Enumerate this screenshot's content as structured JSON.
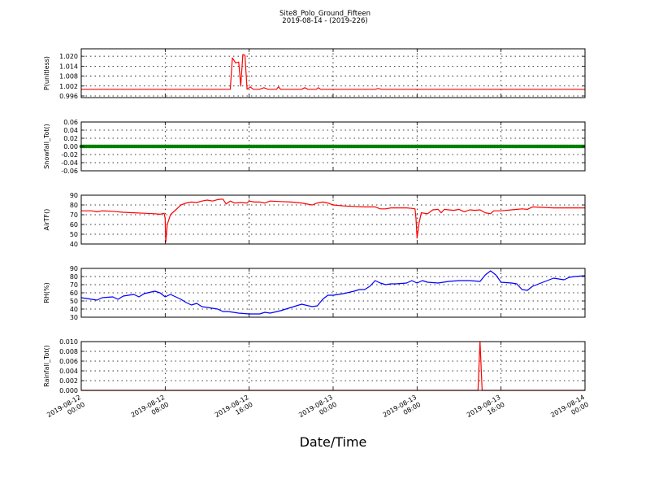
{
  "chart_data": {
    "type": "line",
    "title": "Site8_Polo_Ground_Fifteen",
    "subtitle": "2019-08-14 - (2019-226)",
    "xlabel": "Date/Time",
    "x_ticks": [
      [
        "2019-08-12",
        "00:00"
      ],
      [
        "2019-08-12",
        "08:00"
      ],
      [
        "2019-08-12",
        "16:00"
      ],
      [
        "2019-08-13",
        "00:00"
      ],
      [
        "2019-08-13",
        "08:00"
      ],
      [
        "2019-08-13",
        "16:00"
      ],
      [
        "2019-08-14",
        "00:00"
      ]
    ],
    "x_range_hours": [
      0,
      48
    ],
    "grid": true,
    "panels": [
      {
        "ylabel": "P(unitless)",
        "color": "#ff0000",
        "marker": "line",
        "ylim": [
          0.995,
          1.0245
        ],
        "yticks": [
          "0.996",
          "1.002",
          "1.008",
          "1.014",
          "1.020"
        ],
        "ytick_values": [
          0.996,
          1.002,
          1.008,
          1.014,
          1.02
        ],
        "points": [
          [
            0,
            1.0
          ],
          [
            14.2,
            1.0
          ],
          [
            14.4,
            1.019
          ],
          [
            14.7,
            1.016
          ],
          [
            15.0,
            1.0165
          ],
          [
            15.2,
            1.002
          ],
          [
            15.4,
            1.021
          ],
          [
            15.6,
            1.0205
          ],
          [
            15.8,
            1.0
          ],
          [
            16.1,
            1.0015
          ],
          [
            16.4,
            1.0
          ],
          [
            17.0,
            1.0
          ],
          [
            17.4,
            1.001
          ],
          [
            17.8,
            1.0
          ],
          [
            18.6,
            1.0
          ],
          [
            18.8,
            1.0015
          ],
          [
            19.0,
            1.0
          ],
          [
            21.0,
            1.0
          ],
          [
            21.3,
            1.001
          ],
          [
            21.6,
            1.0
          ],
          [
            22.4,
            1.0
          ],
          [
            22.6,
            1.001
          ],
          [
            22.8,
            1.0
          ],
          [
            28.0,
            1.0
          ],
          [
            28.3,
            1.0005
          ],
          [
            28.6,
            1.0
          ],
          [
            48,
            1.0
          ]
        ]
      },
      {
        "ylabel": "Snowfall_Tot()",
        "color": "#008000",
        "marker": "dots",
        "ylim": [
          -0.06,
          0.06
        ],
        "yticks": [
          "-0.06",
          "-0.04",
          "-0.02",
          "0.00",
          "0.02",
          "0.04",
          "0.06"
        ],
        "ytick_values": [
          -0.06,
          -0.04,
          -0.02,
          0.0,
          0.02,
          0.04,
          0.06
        ],
        "points": [
          [
            0,
            0.0
          ],
          [
            48,
            0.0
          ]
        ]
      },
      {
        "ylabel": "AirTF()",
        "color": "#ff0000",
        "marker": "line",
        "ylim": [
          40,
          90
        ],
        "yticks": [
          "40",
          "50",
          "60",
          "70",
          "80",
          "90"
        ],
        "ytick_values": [
          40,
          50,
          60,
          70,
          80,
          90
        ],
        "points": [
          [
            0,
            74
          ],
          [
            1,
            74
          ],
          [
            1.5,
            73
          ],
          [
            2,
            74
          ],
          [
            3,
            73.5
          ],
          [
            4,
            72.5
          ],
          [
            5,
            72
          ],
          [
            6,
            71.5
          ],
          [
            7,
            71
          ],
          [
            7.5,
            70.5
          ],
          [
            7.9,
            71.5
          ],
          [
            8.0,
            66
          ],
          [
            8.05,
            42
          ],
          [
            8.2,
            60
          ],
          [
            8.5,
            70
          ],
          [
            9,
            75
          ],
          [
            9.5,
            80
          ],
          [
            10,
            82
          ],
          [
            10.5,
            83
          ],
          [
            11,
            82.5
          ],
          [
            11.5,
            84
          ],
          [
            12,
            85
          ],
          [
            12.5,
            84
          ],
          [
            13,
            85.5
          ],
          [
            13.5,
            86
          ],
          [
            13.8,
            81
          ],
          [
            14.2,
            84
          ],
          [
            14.6,
            82
          ],
          [
            15.2,
            82.5
          ],
          [
            15.8,
            82
          ],
          [
            16,
            84
          ],
          [
            16.5,
            83
          ],
          [
            17,
            83
          ],
          [
            17.5,
            82
          ],
          [
            18,
            84
          ],
          [
            19,
            83.5
          ],
          [
            20,
            83
          ],
          [
            21,
            82
          ],
          [
            22,
            80
          ],
          [
            22.5,
            82
          ],
          [
            23,
            83
          ],
          [
            23.5,
            82
          ],
          [
            24,
            80
          ],
          [
            25,
            79
          ],
          [
            26,
            78.5
          ],
          [
            27,
            78
          ],
          [
            28,
            78
          ],
          [
            28.5,
            76
          ],
          [
            29,
            76
          ],
          [
            29.5,
            77
          ],
          [
            30,
            77
          ],
          [
            31,
            77
          ],
          [
            31.5,
            76.5
          ],
          [
            31.8,
            76
          ],
          [
            31.9,
            66
          ],
          [
            32.0,
            46
          ],
          [
            32.2,
            62
          ],
          [
            32.4,
            72
          ],
          [
            33,
            71
          ],
          [
            33.5,
            75
          ],
          [
            34,
            75.5
          ],
          [
            34.3,
            72
          ],
          [
            34.6,
            75.5
          ],
          [
            35,
            75
          ],
          [
            35.5,
            74.5
          ],
          [
            36,
            75.5
          ],
          [
            36.5,
            73
          ],
          [
            37,
            75
          ],
          [
            37.5,
            74.5
          ],
          [
            38,
            75
          ],
          [
            38.5,
            72
          ],
          [
            39,
            71
          ],
          [
            39.3,
            74
          ],
          [
            40,
            74
          ],
          [
            41,
            75
          ],
          [
            42,
            76
          ],
          [
            42.5,
            75.5
          ],
          [
            43,
            78
          ],
          [
            44,
            77.5
          ],
          [
            45,
            77
          ],
          [
            46,
            77
          ],
          [
            47,
            77
          ],
          [
            48,
            77
          ]
        ]
      },
      {
        "ylabel": "RH(%)",
        "color": "#0000ff",
        "marker": "line",
        "ylim": [
          30,
          90
        ],
        "yticks": [
          "30",
          "40",
          "50",
          "60",
          "70",
          "80",
          "90"
        ],
        "ytick_values": [
          30,
          40,
          50,
          60,
          70,
          80,
          90
        ],
        "points": [
          [
            0,
            54
          ],
          [
            1,
            52
          ],
          [
            1.5,
            51
          ],
          [
            2,
            54
          ],
          [
            3,
            55
          ],
          [
            3.5,
            52
          ],
          [
            4,
            56
          ],
          [
            5,
            58
          ],
          [
            5.5,
            55
          ],
          [
            6,
            59
          ],
          [
            7,
            62
          ],
          [
            7.5,
            60
          ],
          [
            8,
            55
          ],
          [
            8.5,
            58
          ],
          [
            9,
            55
          ],
          [
            9.5,
            52
          ],
          [
            10,
            48
          ],
          [
            10.5,
            45
          ],
          [
            11,
            47
          ],
          [
            11.5,
            43
          ],
          [
            12,
            42
          ],
          [
            13,
            40
          ],
          [
            13.5,
            37
          ],
          [
            14,
            37
          ],
          [
            14.5,
            36
          ],
          [
            15,
            35
          ],
          [
            16,
            34
          ],
          [
            17,
            34
          ],
          [
            17.5,
            36
          ],
          [
            18,
            35
          ],
          [
            19,
            38
          ],
          [
            20,
            42
          ],
          [
            21,
            46
          ],
          [
            22,
            43
          ],
          [
            22.5,
            44
          ],
          [
            23,
            52
          ],
          [
            23.5,
            57
          ],
          [
            24,
            57
          ],
          [
            25,
            59
          ],
          [
            26,
            62
          ],
          [
            26.5,
            64
          ],
          [
            27,
            64
          ],
          [
            27.5,
            68
          ],
          [
            28,
            75
          ],
          [
            28.5,
            72
          ],
          [
            29,
            70
          ],
          [
            29.5,
            71
          ],
          [
            30,
            71
          ],
          [
            31,
            72
          ],
          [
            31.5,
            75
          ],
          [
            32,
            72
          ],
          [
            32.5,
            75
          ],
          [
            33,
            73
          ],
          [
            34,
            72
          ],
          [
            35,
            74
          ],
          [
            36,
            75
          ],
          [
            37,
            75
          ],
          [
            38,
            74
          ],
          [
            38.5,
            82
          ],
          [
            39,
            87
          ],
          [
            39.5,
            82
          ],
          [
            40,
            73
          ],
          [
            41,
            72
          ],
          [
            41.5,
            71
          ],
          [
            42,
            64
          ],
          [
            42.5,
            63
          ],
          [
            43,
            68
          ],
          [
            44,
            73
          ],
          [
            45,
            78
          ],
          [
            46,
            76
          ],
          [
            46.5,
            79
          ],
          [
            47,
            80
          ],
          [
            48,
            81
          ]
        ]
      },
      {
        "ylabel": "Rainfall_Tot()",
        "color": "#ff0000",
        "marker": "line",
        "ylim": [
          0,
          0.01
        ],
        "yticks": [
          "0.000",
          "0.002",
          "0.004",
          "0.006",
          "0.008",
          "0.010"
        ],
        "ytick_values": [
          0,
          0.002,
          0.004,
          0.006,
          0.008,
          0.01
        ],
        "points": [
          [
            0,
            0
          ],
          [
            37.8,
            0
          ],
          [
            38.0,
            0.01
          ],
          [
            38.2,
            0
          ],
          [
            48,
            0
          ]
        ]
      }
    ]
  }
}
